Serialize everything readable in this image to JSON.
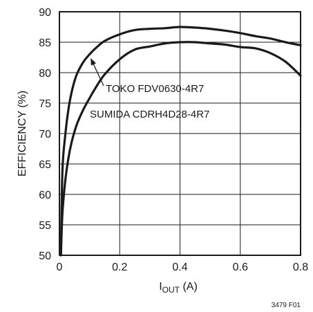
{
  "chart_data": {
    "type": "line",
    "xlabel_main": "I",
    "xlabel_sub": "OUT",
    "xlabel_unit": " (A)",
    "ylabel": "EFFICIENCY (%)",
    "xlim": [
      0,
      0.8
    ],
    "ylim": [
      50,
      90
    ],
    "x_ticks": [
      0,
      0.2,
      0.4,
      0.6,
      0.8
    ],
    "x_tick_labels": [
      "0",
      "0.2",
      "0.4",
      "0.6",
      "0.8"
    ],
    "y_ticks": [
      50,
      55,
      60,
      65,
      70,
      75,
      80,
      85,
      90
    ],
    "y_tick_labels": [
      "50",
      "55",
      "60",
      "65",
      "70",
      "75",
      "80",
      "85",
      "90"
    ],
    "grid": true,
    "figure_id": "3479 F01",
    "series": [
      {
        "name": "TOKO FDV0630-4R7",
        "x": [
          0.005,
          0.01,
          0.02,
          0.03,
          0.04,
          0.05,
          0.06,
          0.08,
          0.1,
          0.12,
          0.15,
          0.2,
          0.25,
          0.3,
          0.35,
          0.4,
          0.45,
          0.5,
          0.55,
          0.6,
          0.65,
          0.7,
          0.75,
          0.8
        ],
        "y": [
          50,
          64,
          70,
          74,
          76.7,
          78.6,
          80,
          81.8,
          83,
          84,
          85.2,
          86.3,
          87,
          87.2,
          87.3,
          87.5,
          87.4,
          87.2,
          86.9,
          86.5,
          86,
          85.6,
          85,
          84.5
        ]
      },
      {
        "name": "SUMIDA CDRH4D28-4R7",
        "x": [
          0.005,
          0.01,
          0.02,
          0.03,
          0.04,
          0.05,
          0.06,
          0.08,
          0.1,
          0.12,
          0.15,
          0.2,
          0.25,
          0.3,
          0.35,
          0.4,
          0.45,
          0.5,
          0.55,
          0.6,
          0.65,
          0.7,
          0.75,
          0.8
        ],
        "y": [
          50,
          57,
          62.5,
          66,
          68.5,
          70.3,
          71.8,
          74,
          75.8,
          77.5,
          79.7,
          82.2,
          83.8,
          84.3,
          84.8,
          85,
          85,
          84.8,
          84.6,
          84.2,
          84,
          83.2,
          81.8,
          79.5
        ]
      }
    ],
    "annotations": [
      {
        "text": "TOKO FDV0630-4R7",
        "series": 0,
        "arrow_to_x": 0.1,
        "arrow_to_y": 82.5
      },
      {
        "text": "SUMIDA CDRH4D28-4R7",
        "series": 1
      }
    ]
  }
}
